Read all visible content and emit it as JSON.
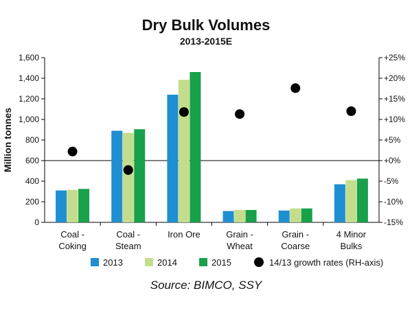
{
  "chart_data": {
    "type": "bar",
    "title": "Dry Bulk Volumes",
    "subtitle": "2013-2015E",
    "ylabel": "Million tonnes",
    "y2label": "",
    "categories": [
      [
        "Coal -",
        "Coking"
      ],
      [
        "Coal -",
        "Steam"
      ],
      [
        "Iron Ore"
      ],
      [
        "Grain -",
        "Wheat"
      ],
      [
        "Grain -",
        "Coarse"
      ],
      [
        "4 Minor",
        "Bulks"
      ]
    ],
    "series": [
      {
        "name": "2013",
        "color": "#1f8fd1",
        "values": [
          310,
          890,
          1240,
          110,
          115,
          370
        ]
      },
      {
        "name": "2014",
        "color": "#c3dd8c",
        "values": [
          315,
          870,
          1385,
          120,
          135,
          410
        ]
      },
      {
        "name": "2015",
        "color": "#18a04a",
        "values": [
          325,
          905,
          1460,
          120,
          135,
          425
        ]
      }
    ],
    "growth_series": {
      "name": "14/13 growth rates (RH-axis)",
      "color": "#000000",
      "values": [
        2.2,
        -2.3,
        11.8,
        11.3,
        17.6,
        12.0
      ]
    },
    "ylim": [
      0,
      1600
    ],
    "yticks": [
      0,
      200,
      400,
      600,
      800,
      1000,
      1200,
      1400,
      1600
    ],
    "ytick_labels": [
      "0",
      "200",
      "400",
      "600",
      "800",
      "1,000",
      "1,200",
      "1,400",
      "1,600"
    ],
    "y2lim": [
      -15,
      25
    ],
    "y2ticks": [
      -15,
      -10,
      -5,
      0,
      5,
      10,
      15,
      20,
      25
    ],
    "y2tick_labels": [
      "-15%",
      "-10%",
      "-5%",
      "+0%",
      "+5%",
      "+10%",
      "+15%",
      "+20%",
      "+25%"
    ],
    "zero_line_value": 600,
    "grid": false,
    "legend_position": "bottom"
  },
  "source": "Source: BIMCO, SSY"
}
